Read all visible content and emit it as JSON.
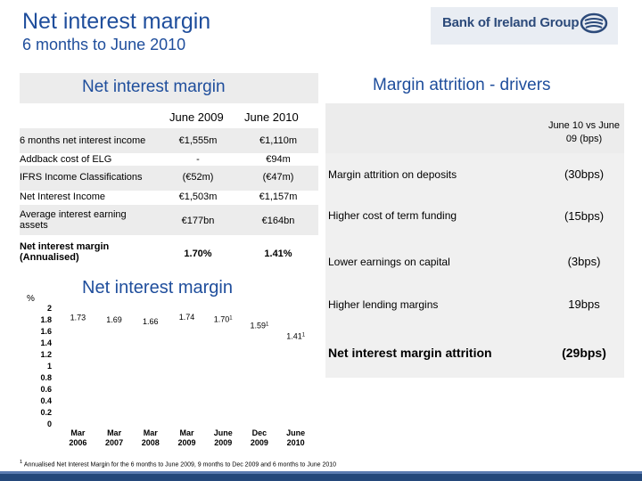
{
  "header": {
    "title": "Net interest margin",
    "subtitle": "6 months to June 2010",
    "logo_text": "Bank of Ireland Group"
  },
  "left_table": {
    "title": "Net interest margin",
    "col1": "June 2009",
    "col2": "June 2010",
    "rows": [
      {
        "label": "6 months net interest income",
        "v1": "€1,555m",
        "v2": "€1,110m"
      },
      {
        "label": "Addback cost of ELG",
        "v1": "-",
        "v2": "€94m"
      },
      {
        "label": "IFRS Income Classifications",
        "v1": "(€52m)",
        "v2": "(€47m)"
      },
      {
        "label": "Net Interest Income",
        "v1": "€1,503m",
        "v2": "€1,157m"
      },
      {
        "label": "Average interest earning assets",
        "v1": "€177bn",
        "v2": "€164bn"
      },
      {
        "label": "Net interest margin (Annualised)",
        "v1": "1.70%",
        "v2": "1.41%"
      }
    ]
  },
  "right_table": {
    "title": "Margin attrition - drivers",
    "col_head": "June 10 vs June 09 (bps)",
    "rows": [
      {
        "label": "Margin attrition on deposits",
        "value": "(30bps)"
      },
      {
        "label": "Higher cost of term funding",
        "value": "(15bps)"
      },
      {
        "label": "Lower earnings on capital",
        "value": "(3bps)"
      },
      {
        "label": "Higher lending margins",
        "value": "19bps"
      },
      {
        "label": "Net interest margin attrition",
        "value": "(29bps)"
      }
    ]
  },
  "chart_data": {
    "type": "bar",
    "title": "Net interest margin",
    "ylabel": "%",
    "ylim": [
      0,
      2
    ],
    "yticks": [
      "2",
      "1.8",
      "1.6",
      "1.4",
      "1.2",
      "1",
      "0.8",
      "0.6",
      "0.4",
      "0.2",
      "0"
    ],
    "categories": [
      [
        "Mar",
        "2006"
      ],
      [
        "Mar",
        "2007"
      ],
      [
        "Mar",
        "2008"
      ],
      [
        "Mar",
        "2009"
      ],
      [
        "June",
        "2009"
      ],
      [
        "Dec",
        "2009"
      ],
      [
        "June",
        "2010"
      ]
    ],
    "values": [
      1.73,
      1.69,
      1.66,
      1.74,
      1.7,
      1.59,
      1.41
    ],
    "labels": [
      "1.73",
      "1.69",
      "1.66",
      "1.74",
      "1.70",
      "1.59",
      "1.41"
    ],
    "footnote_marks": [
      false,
      false,
      false,
      false,
      true,
      true,
      true
    ],
    "colors": {
      "bar": "#ffffff",
      "label": "#000000"
    }
  },
  "footnote": {
    "mark": "1",
    "text": "Annualised Net Interest Margin for the 6 months to June 2009, 9 months to Dec 2009 and 6 months to June 2010"
  }
}
